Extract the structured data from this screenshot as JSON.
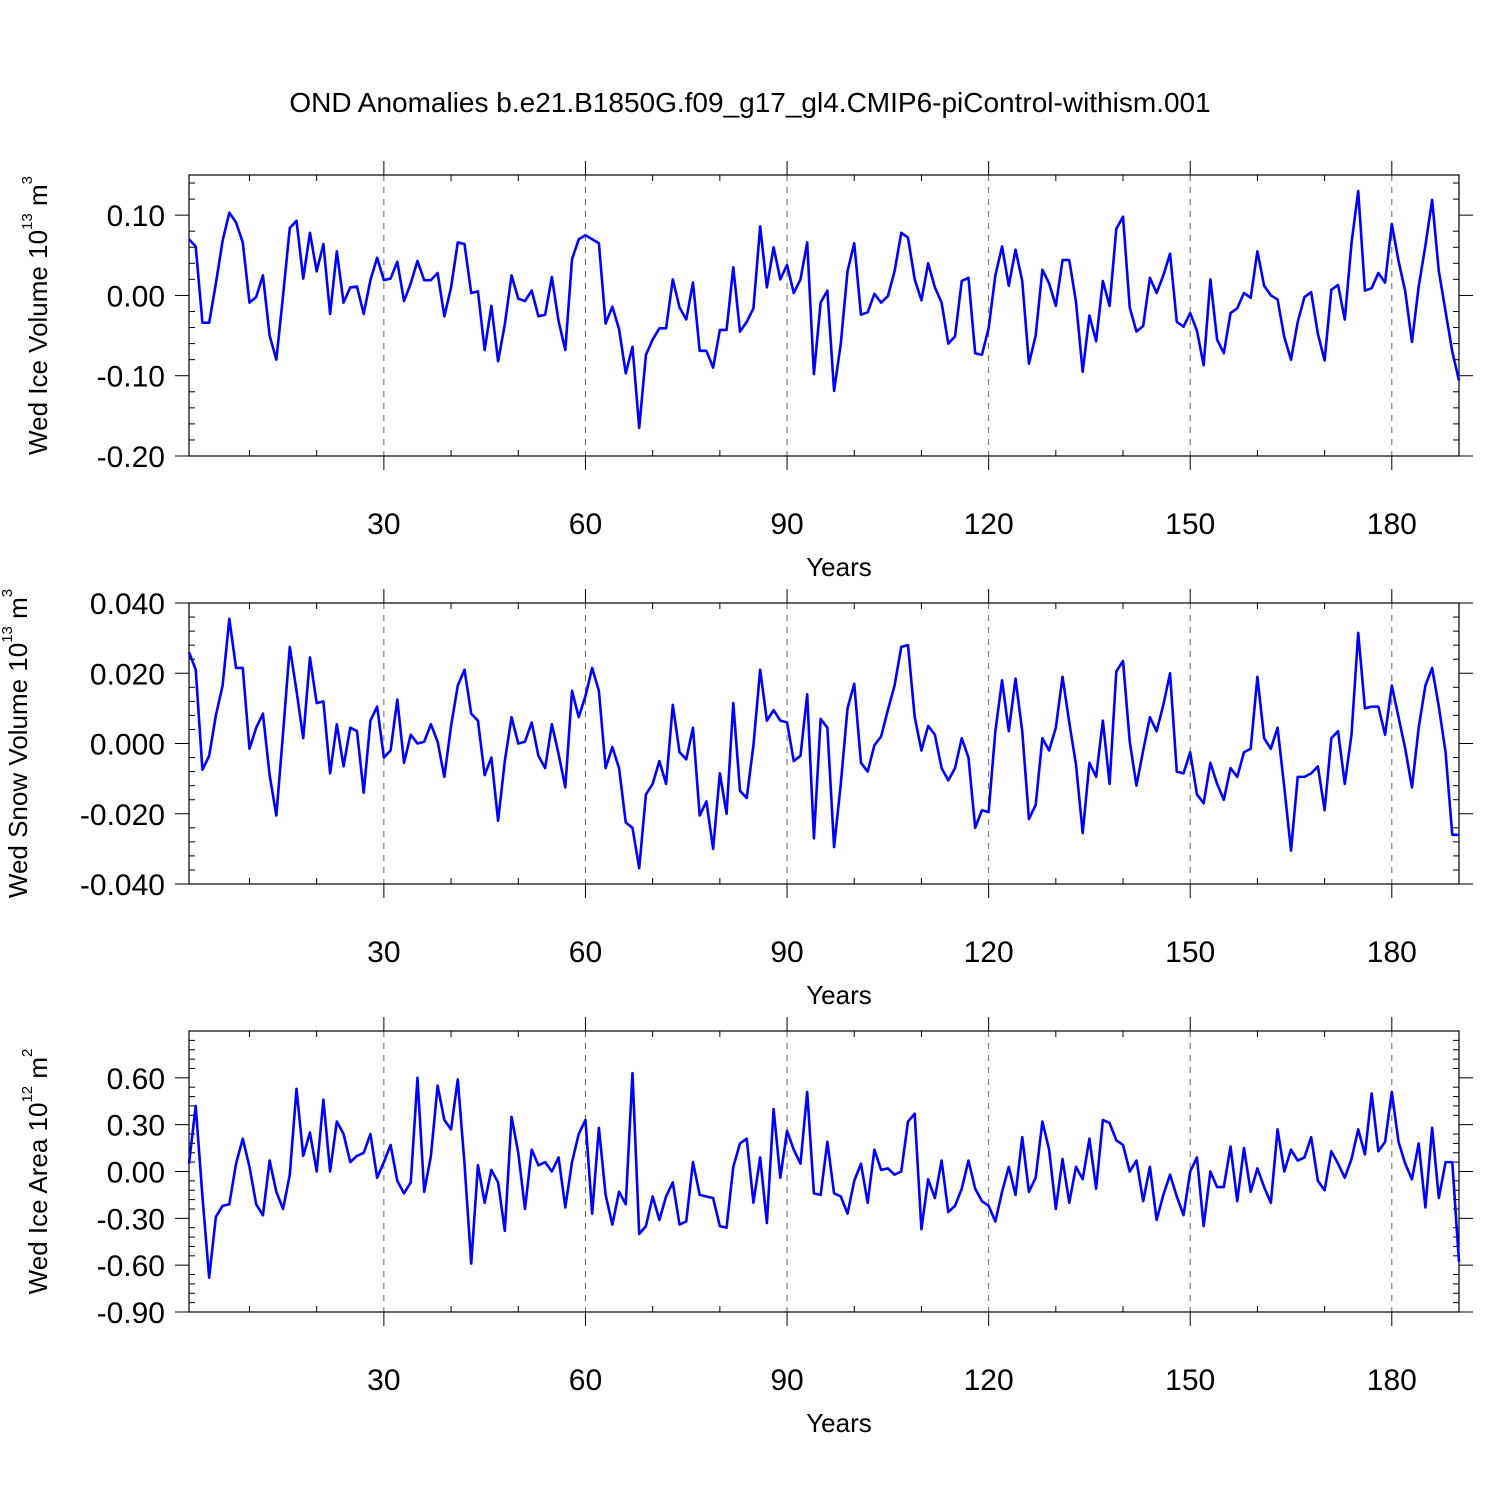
{
  "title": "OND Anomalies b.e21.B1850G.f09_g17_gl4.CMIP6-piControl-withism.001",
  "chart_data": [
    {
      "type": "line",
      "name": "ice-volume",
      "title": "OND Anomalies b.e21.B1850G.f09_g17_gl4.CMIP6-piControl-withism.001",
      "xlabel": "Years",
      "ylabel": "Wed Ice Volume 10",
      "ylabel_sup": "13",
      "ylabel_unit": "m",
      "ylabel_unit_sup": "3",
      "xlim": [
        1,
        190
      ],
      "ylim": [
        -0.2,
        0.15
      ],
      "xticks": [
        30,
        60,
        90,
        120,
        150,
        180
      ],
      "xtick_labels": [
        "30",
        "60",
        "90",
        "120",
        "150",
        "180"
      ],
      "yticks": [
        0.1,
        0.0,
        -0.1,
        -0.2
      ],
      "ytick_labels": [
        "0.10",
        "0.00",
        "-0.10",
        "-0.20"
      ],
      "grid": "vertical dashed at x ticks",
      "color": "#0000ff",
      "x_start": 1,
      "values": [
        0.07,
        0.061,
        -0.034,
        -0.034,
        0.015,
        0.068,
        0.103,
        0.091,
        0.066,
        -0.009,
        -0.002,
        0.025,
        -0.05,
        -0.08,
        0.0,
        0.084,
        0.093,
        0.021,
        0.078,
        0.03,
        0.064,
        -0.023,
        0.055,
        -0.009,
        0.01,
        0.011,
        -0.023,
        0.019,
        0.047,
        0.019,
        0.021,
        0.042,
        -0.007,
        0.015,
        0.043,
        0.019,
        0.019,
        0.028,
        -0.026,
        0.01,
        0.066,
        0.064,
        0.003,
        0.005,
        -0.068,
        -0.013,
        -0.082,
        -0.036,
        0.025,
        -0.004,
        -0.007,
        0.006,
        -0.026,
        -0.024,
        0.023,
        -0.032,
        -0.068,
        0.045,
        0.07,
        0.075,
        0.07,
        0.065,
        -0.035,
        -0.014,
        -0.042,
        -0.097,
        -0.064,
        -0.165,
        -0.074,
        -0.055,
        -0.041,
        -0.041,
        0.02,
        -0.015,
        -0.03,
        0.016,
        -0.069,
        -0.069,
        -0.09,
        -0.043,
        -0.043,
        0.035,
        -0.045,
        -0.033,
        -0.016,
        0.086,
        0.01,
        0.06,
        0.02,
        0.038,
        0.003,
        0.02,
        0.066,
        -0.098,
        -0.009,
        0.006,
        -0.119,
        -0.06,
        0.03,
        0.065,
        -0.024,
        -0.021,
        0.002,
        -0.009,
        -0.001,
        0.03,
        0.078,
        0.072,
        0.02,
        -0.006,
        0.04,
        0.01,
        -0.009,
        -0.06,
        -0.051,
        0.018,
        0.022,
        -0.072,
        -0.074,
        -0.041,
        0.025,
        0.061,
        0.012,
        0.057,
        0.018,
        -0.085,
        -0.05,
        0.032,
        0.015,
        -0.013,
        0.044,
        0.044,
        -0.008,
        -0.095,
        -0.025,
        -0.057,
        0.018,
        -0.013,
        0.083,
        0.098,
        -0.015,
        -0.045,
        -0.038,
        0.022,
        0.003,
        0.025,
        0.052,
        -0.033,
        -0.039,
        -0.022,
        -0.044,
        -0.087,
        0.02,
        -0.055,
        -0.072,
        -0.022,
        -0.016,
        0.003,
        -0.003,
        0.055,
        0.012,
        0.0,
        -0.005,
        -0.052,
        -0.08,
        -0.033,
        -0.002,
        0.004,
        -0.048,
        -0.081,
        0.007,
        0.013,
        -0.03,
        0.065,
        0.13,
        0.006,
        0.009,
        0.028,
        0.016,
        0.089,
        0.043,
        0.005,
        -0.058,
        0.011,
        0.062,
        0.119,
        0.03,
        -0.02,
        -0.07,
        -0.106
      ]
    },
    {
      "type": "line",
      "name": "snow-volume",
      "xlabel": "Years",
      "ylabel": "Wed Snow Volume 10",
      "ylabel_sup": "13",
      "ylabel_unit": "m",
      "ylabel_unit_sup": "3",
      "xlim": [
        1,
        190
      ],
      "ylim": [
        -0.04,
        0.04
      ],
      "xticks": [
        30,
        60,
        90,
        120,
        150,
        180
      ],
      "xtick_labels": [
        "30",
        "60",
        "90",
        "120",
        "150",
        "180"
      ],
      "yticks": [
        0.04,
        0.02,
        0.0,
        -0.02,
        -0.04
      ],
      "ytick_labels": [
        "0.040",
        "0.020",
        "0.000",
        "-0.020",
        "-0.040"
      ],
      "grid": "vertical dashed at x ticks",
      "color": "#0000ff",
      "x_start": 1,
      "values": [
        0.026,
        0.021,
        -0.0075,
        -0.0035,
        0.008,
        0.0165,
        0.0355,
        0.0215,
        0.0215,
        -0.0015,
        0.0045,
        0.0085,
        -0.009,
        -0.0205,
        0.003,
        0.0275,
        0.015,
        0.0015,
        0.0245,
        0.0115,
        0.012,
        -0.0085,
        0.0055,
        -0.0065,
        0.0045,
        0.0035,
        -0.014,
        0.0065,
        0.0105,
        -0.004,
        -0.002,
        0.0125,
        -0.0055,
        0.0025,
        0.0,
        0.0005,
        0.0055,
        0.0005,
        -0.0095,
        0.005,
        0.0165,
        0.021,
        0.0085,
        0.0065,
        -0.009,
        -0.004,
        -0.022,
        -0.005,
        0.0075,
        0.0,
        0.0005,
        0.006,
        -0.0035,
        -0.007,
        0.0055,
        -0.003,
        -0.0125,
        0.015,
        0.0075,
        0.0135,
        0.0215,
        0.015,
        -0.007,
        -0.001,
        -0.007,
        -0.0225,
        -0.024,
        -0.0355,
        -0.0145,
        -0.0115,
        -0.005,
        -0.0115,
        0.011,
        -0.0025,
        -0.0045,
        0.0045,
        -0.0205,
        -0.0165,
        -0.03,
        -0.0085,
        -0.02,
        0.0115,
        -0.0135,
        -0.0155,
        -0.0005,
        0.021,
        0.0065,
        0.0095,
        0.0065,
        0.006,
        -0.005,
        -0.0035,
        0.014,
        -0.027,
        0.007,
        0.0045,
        -0.0295,
        -0.0115,
        0.01,
        0.017,
        -0.0055,
        -0.008,
        -0.0005,
        0.002,
        0.0095,
        0.0165,
        0.0275,
        0.028,
        0.0075,
        -0.002,
        0.005,
        0.0025,
        -0.007,
        -0.0105,
        -0.007,
        0.0015,
        -0.004,
        -0.024,
        -0.019,
        -0.0195,
        0.0035,
        0.018,
        0.0035,
        0.0185,
        0.0035,
        -0.0215,
        -0.0175,
        0.0015,
        -0.002,
        0.0045,
        0.019,
        0.006,
        -0.006,
        -0.0255,
        -0.0055,
        -0.0095,
        0.0065,
        -0.0115,
        0.0205,
        0.0235,
        0.0005,
        -0.012,
        -0.002,
        0.0075,
        0.0035,
        0.011,
        0.02,
        -0.008,
        -0.0085,
        -0.0025,
        -0.0145,
        -0.017,
        -0.0055,
        -0.0115,
        -0.016,
        -0.007,
        -0.0095,
        -0.0025,
        -0.0015,
        0.019,
        0.0015,
        -0.0015,
        0.0045,
        -0.0125,
        -0.0305,
        -0.0095,
        -0.0095,
        -0.0085,
        -0.0065,
        -0.019,
        0.0015,
        0.0035,
        -0.0115,
        0.0025,
        0.0315,
        0.01,
        0.0105,
        0.0105,
        0.0025,
        0.0165,
        0.0075,
        -0.0015,
        -0.0125,
        0.0045,
        0.0165,
        0.0215,
        0.0105,
        -0.0025,
        -0.026,
        -0.026
      ]
    },
    {
      "type": "line",
      "name": "ice-area",
      "xlabel": "Years",
      "ylabel": "Wed Ice Area 10",
      "ylabel_sup": "12",
      "ylabel_unit": "m",
      "ylabel_unit_sup": "2",
      "xlim": [
        1,
        190
      ],
      "ylim": [
        -0.9,
        0.9
      ],
      "xticks": [
        30,
        60,
        90,
        120,
        150,
        180
      ],
      "xtick_labels": [
        "30",
        "60",
        "90",
        "120",
        "150",
        "180"
      ],
      "yticks": [
        0.6,
        0.3,
        0.0,
        -0.3,
        -0.6,
        -0.9
      ],
      "ytick_labels": [
        "0.60",
        "0.30",
        "0.00",
        "-0.30",
        "-0.60",
        "-0.90"
      ],
      "grid": "vertical dashed at x ticks",
      "color": "#0000ff",
      "x_start": 1,
      "values": [
        0.05,
        0.42,
        -0.16,
        -0.68,
        -0.29,
        -0.22,
        -0.21,
        0.05,
        0.21,
        0.03,
        -0.21,
        -0.28,
        0.07,
        -0.13,
        -0.24,
        -0.02,
        0.53,
        0.1,
        0.25,
        0.0,
        0.46,
        0.0,
        0.32,
        0.24,
        0.06,
        0.1,
        0.12,
        0.24,
        -0.04,
        0.06,
        0.17,
        -0.06,
        -0.14,
        -0.07,
        0.6,
        -0.13,
        0.1,
        0.55,
        0.33,
        0.27,
        0.59,
        0.05,
        -0.59,
        0.04,
        -0.2,
        0.01,
        -0.07,
        -0.38,
        0.35,
        0.12,
        -0.24,
        0.14,
        0.04,
        0.06,
        0.0,
        0.09,
        -0.23,
        0.06,
        0.24,
        0.33,
        -0.27,
        0.28,
        -0.15,
        -0.34,
        -0.13,
        -0.21,
        0.63,
        -0.4,
        -0.35,
        -0.16,
        -0.31,
        -0.16,
        -0.07,
        -0.34,
        -0.32,
        0.06,
        -0.15,
        -0.16,
        -0.17,
        -0.35,
        -0.36,
        0.03,
        0.18,
        0.21,
        -0.2,
        0.09,
        -0.33,
        0.4,
        -0.04,
        0.26,
        0.14,
        0.05,
        0.51,
        -0.14,
        -0.15,
        0.19,
        -0.14,
        -0.16,
        -0.27,
        -0.06,
        0.05,
        -0.2,
        0.14,
        0.01,
        0.02,
        -0.02,
        0.0,
        0.32,
        0.37,
        -0.37,
        -0.05,
        -0.17,
        0.07,
        -0.26,
        -0.22,
        -0.11,
        0.07,
        -0.11,
        -0.19,
        -0.22,
        -0.32,
        -0.13,
        0.03,
        -0.15,
        0.22,
        -0.13,
        -0.04,
        0.32,
        0.14,
        -0.24,
        0.08,
        -0.2,
        0.03,
        -0.05,
        0.21,
        -0.11,
        0.33,
        0.31,
        0.2,
        0.17,
        0.0,
        0.07,
        -0.19,
        0.03,
        -0.31,
        -0.15,
        -0.02,
        -0.16,
        -0.28,
        0.0,
        0.09,
        -0.35,
        0.0,
        -0.1,
        -0.1,
        0.16,
        -0.19,
        0.15,
        -0.13,
        0.02,
        -0.1,
        -0.2,
        0.27,
        0.0,
        0.14,
        0.07,
        0.09,
        0.22,
        -0.06,
        -0.12,
        0.13,
        0.05,
        -0.04,
        0.08,
        0.27,
        0.11,
        0.5,
        0.13,
        0.19,
        0.51,
        0.19,
        0.05,
        -0.05,
        0.18,
        -0.23,
        0.28,
        -0.17,
        0.06,
        0.06,
        -0.58
      ]
    }
  ]
}
